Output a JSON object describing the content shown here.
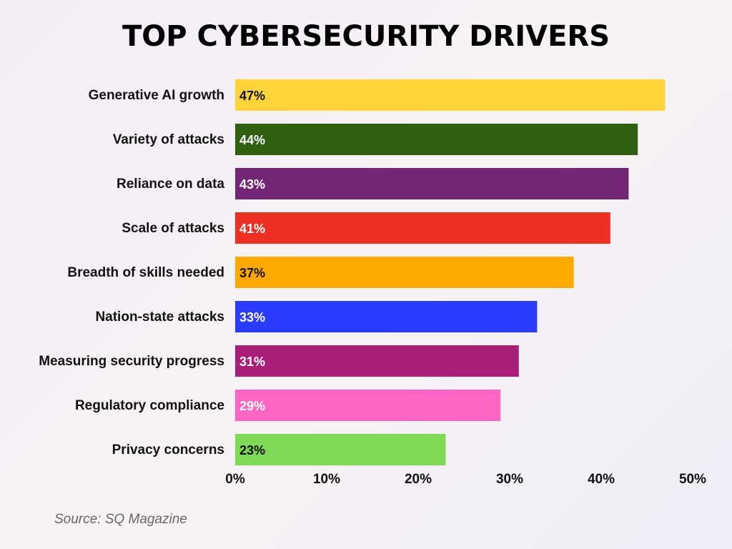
{
  "source": "Source: SQ Magazine",
  "chart_data": {
    "type": "bar",
    "orientation": "horizontal",
    "title": "TOP CYBERSECURITY DRIVERS",
    "categories": [
      "Generative AI growth",
      "Variety of attacks",
      "Reliance on data",
      "Scale of attacks",
      "Breadth of skills needed",
      "Nation-state attacks",
      "Measuring security progress",
      "Regulatory compliance",
      "Privacy concerns"
    ],
    "values": [
      47,
      44,
      43,
      41,
      37,
      33,
      31,
      29,
      23
    ],
    "value_labels": [
      "47%",
      "44%",
      "43%",
      "41%",
      "37%",
      "33%",
      "31%",
      "29%",
      "23%"
    ],
    "colors": [
      "#ffd43b",
      "#2f6010",
      "#732673",
      "#ec3024",
      "#ffa800",
      "#2a3cff",
      "#a81e78",
      "#ff66c4",
      "#7ed957"
    ],
    "label_colors": [
      "#111111",
      "#ffffff",
      "#ffffff",
      "#ffffff",
      "#111111",
      "#ffffff",
      "#ffffff",
      "#ffffff",
      "#111111"
    ],
    "xlim": [
      0,
      50
    ],
    "xticks": [
      0,
      10,
      20,
      30,
      40,
      50
    ],
    "xtick_labels": [
      "0%",
      "10%",
      "20%",
      "30%",
      "40%",
      "50%"
    ],
    "grid": false,
    "legend": "none"
  }
}
